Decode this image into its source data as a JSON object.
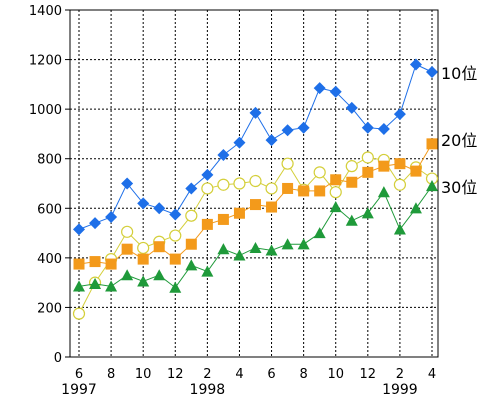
{
  "chart_data": {
    "type": "line",
    "title": "",
    "xlabel": "",
    "ylabel": "",
    "ylim": [
      0,
      1400
    ],
    "yticks": [
      0,
      200,
      400,
      600,
      800,
      1000,
      1200,
      1400
    ],
    "x": [
      "1997-06",
      "1997-07",
      "1997-08",
      "1997-09",
      "1997-10",
      "1997-11",
      "1997-12",
      "1998-01",
      "1998-02",
      "1998-03",
      "1998-04",
      "1998-05",
      "1998-06",
      "1998-07",
      "1998-08",
      "1998-09",
      "1998-10",
      "1998-11",
      "1998-12",
      "1999-01",
      "1999-02",
      "1999-03",
      "1999-04"
    ],
    "x_tick_labels": [
      "6",
      "",
      "8",
      "",
      "10",
      "",
      "12",
      "",
      "2",
      "",
      "4",
      "",
      "6",
      "",
      "8",
      "",
      "10",
      "",
      "12",
      "",
      "2",
      "",
      "4"
    ],
    "year_labels": [
      {
        "text": "1997",
        "x": "1997-06"
      },
      {
        "text": "1998",
        "x": "1998-02"
      },
      {
        "text": "1999",
        "x": "1999-02"
      }
    ],
    "grid": true,
    "series": [
      {
        "name": "10位",
        "color": "#1e6fe8",
        "marker": "diamond",
        "values": [
          515,
          540,
          565,
          700,
          620,
          600,
          575,
          680,
          735,
          815,
          865,
          985,
          875,
          915,
          925,
          1085,
          1070,
          1005,
          925,
          920,
          980,
          1180,
          1150
        ]
      },
      {
        "name": "20位",
        "color": "#f39a1b",
        "marker": "square",
        "values": [
          375,
          385,
          375,
          435,
          395,
          445,
          395,
          455,
          535,
          555,
          580,
          615,
          605,
          680,
          670,
          670,
          715,
          705,
          745,
          770,
          780,
          750,
          860
        ]
      },
      {
        "name": "30位",
        "color": "#1f9a3a",
        "marker": "triangle",
        "values": [
          285,
          295,
          285,
          330,
          305,
          330,
          280,
          370,
          345,
          435,
          410,
          440,
          430,
          455,
          455,
          500,
          605,
          550,
          580,
          665,
          515,
          600,
          690
        ]
      },
      {
        "name": "",
        "color": "#d4cf3a",
        "marker": "circle",
        "values": [
          175,
          300,
          395,
          505,
          440,
          465,
          490,
          570,
          680,
          695,
          700,
          710,
          680,
          780,
          675,
          745,
          665,
          770,
          805,
          795,
          695,
          765,
          720
        ]
      }
    ]
  }
}
